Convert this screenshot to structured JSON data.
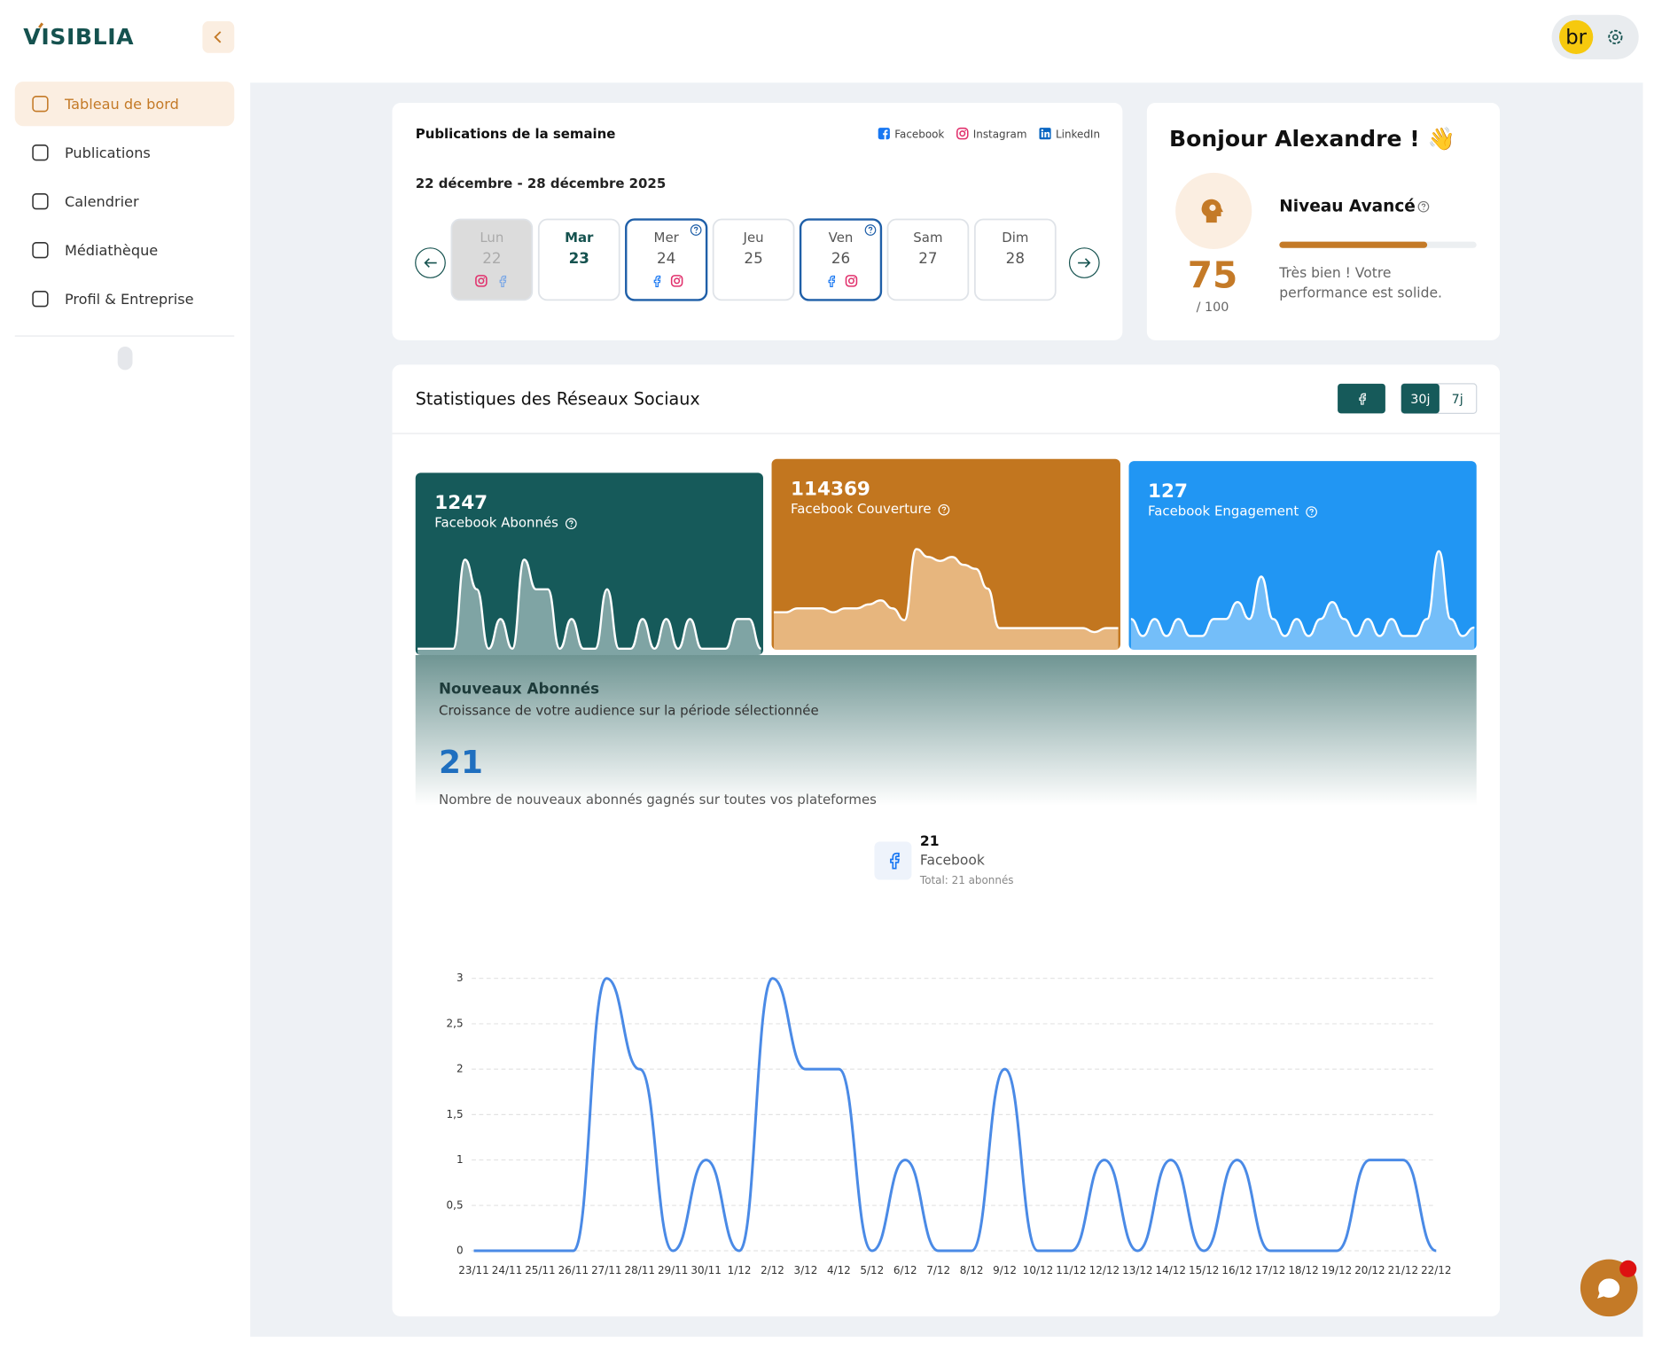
{
  "sidebar": {
    "logo": "VISIBLIA",
    "items": [
      "Tableau de bord",
      "Publications",
      "Calendrier",
      "Médiathèque",
      "Profil & Entreprise"
    ]
  },
  "header": {
    "avatar": "br"
  },
  "week_card": {
    "title": "Publications de la semaine",
    "legend": [
      "Facebook",
      "Instagram",
      "LinkedIn"
    ],
    "date_range": "22 décembre - 28 décembre 2025",
    "days": [
      {
        "name": "Lun",
        "date": "22"
      },
      {
        "name": "Mar",
        "date": "23"
      },
      {
        "name": "Mer",
        "date": "24"
      },
      {
        "name": "Jeu",
        "date": "25"
      },
      {
        "name": "Ven",
        "date": "26"
      },
      {
        "name": "Sam",
        "date": "27"
      },
      {
        "name": "Dim",
        "date": "28"
      }
    ]
  },
  "level_card": {
    "greeting": "Bonjour Alexandre ! 👋",
    "score": 75,
    "score_max": {
      "value": 100,
      "label": "/ 100"
    },
    "level": "Niveau Avancé",
    "message": [
      "Très bien ! Votre",
      "performance est solide."
    ]
  },
  "stats": {
    "title": "Statistiques des Réseaux Sociaux",
    "periods": [
      "30j",
      "7j"
    ],
    "cards": [
      {
        "value": 1247,
        "label": "Facebook Abonnés"
      },
      {
        "value": 114369,
        "label": "Facebook Couverture",
        "spark": [
          3,
          3,
          3.5,
          3.5,
          3.5,
          3,
          3.5,
          3.5,
          4,
          4.5,
          3.5,
          2,
          11,
          10,
          9.5,
          10,
          9,
          8.5,
          6,
          1,
          1,
          1,
          1,
          1,
          1,
          1,
          1,
          0.5,
          1,
          1
        ]
      },
      {
        "value": 127,
        "label": "Facebook Engagement",
        "spark": [
          1,
          0,
          1,
          0,
          1,
          0,
          0,
          1,
          1,
          2,
          1,
          3.5,
          1,
          0,
          1,
          0,
          1,
          2,
          1,
          0,
          1,
          0,
          1,
          0,
          0,
          1,
          5,
          1,
          0,
          0.5
        ]
      }
    ],
    "new_followers": {
      "title": "Nouveaux Abonnés",
      "subtitle": "Croissance de votre audience sur la période sélectionnée",
      "total": 21,
      "caption": "Nombre de nouveaux abonnés gagnés sur toutes vos plateformes",
      "platform": {
        "count": 21,
        "name": "Facebook",
        "total": "Total: 21 abonnés"
      },
      "chart": {
        "type": "line",
        "x": [
          "23/11",
          "24/11",
          "25/11",
          "26/11",
          "27/11",
          "28/11",
          "29/11",
          "30/11",
          "1/12",
          "2/12",
          "3/12",
          "4/12",
          "5/12",
          "6/12",
          "7/12",
          "8/12",
          "9/12",
          "10/12",
          "11/12",
          "12/12",
          "13/12",
          "14/12",
          "15/12",
          "16/12",
          "17/12",
          "18/12",
          "19/12",
          "20/12",
          "21/12",
          "22/12"
        ],
        "values": [
          0,
          0,
          0,
          0,
          3,
          2,
          0,
          1,
          0,
          3,
          2,
          2,
          0,
          1,
          0,
          0,
          2,
          0,
          0,
          1,
          0,
          1,
          0,
          1,
          0,
          0,
          0,
          1,
          1,
          0
        ],
        "color": "#4a8ae6",
        "ylim": [
          0,
          3
        ],
        "yticks": [
          0,
          {
            "value": 0.5,
            "label": "0,5"
          },
          1,
          {
            "value": 1.5,
            "label": "1,5"
          },
          2,
          {
            "value": 2.5,
            "label": "2,5"
          },
          3
        ],
        "grid": true
      }
    }
  }
}
